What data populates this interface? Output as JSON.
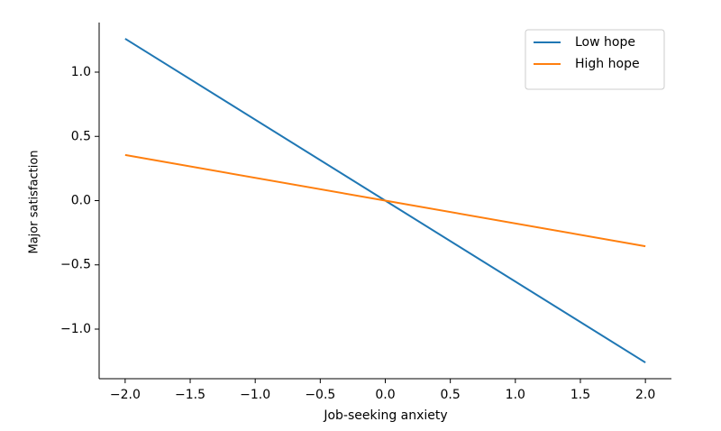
{
  "chart_data": {
    "type": "line",
    "x_label": "Job-seeking anxiety",
    "y_label": "Major satisfaction",
    "x": [
      -2.0,
      0.0,
      2.0
    ],
    "series": [
      {
        "name": "Low hope",
        "color": "#1f77b4",
        "values": [
          1.26,
          0.0,
          -1.26
        ]
      },
      {
        "name": "High hope",
        "color": "#ff7f0e",
        "values": [
          0.355,
          0.0,
          -0.355
        ]
      }
    ],
    "xlim": [
      -2.2,
      2.2
    ],
    "ylim": [
      -1.386,
      1.386
    ],
    "xticks": [
      {
        "value": -2.0,
        "label": "−2.0"
      },
      {
        "value": -1.5,
        "label": "−1.5"
      },
      {
        "value": -1.0,
        "label": "−1.0"
      },
      {
        "value": -0.5,
        "label": "−0.5"
      },
      {
        "value": 0.0,
        "label": "0.0"
      },
      0.5,
      {
        "value": 1.0,
        "label": "1.0"
      },
      1.5,
      {
        "value": 2.0,
        "label": "2.0"
      }
    ],
    "yticks": [
      {
        "value": -1.0,
        "label": "−1.0"
      },
      {
        "value": -0.5,
        "label": "−0.5"
      },
      {
        "value": 0.0,
        "label": "0.0"
      },
      0.5,
      {
        "value": 1.0,
        "label": "1.0"
      }
    ],
    "legend": "upper right",
    "grid": false
  }
}
